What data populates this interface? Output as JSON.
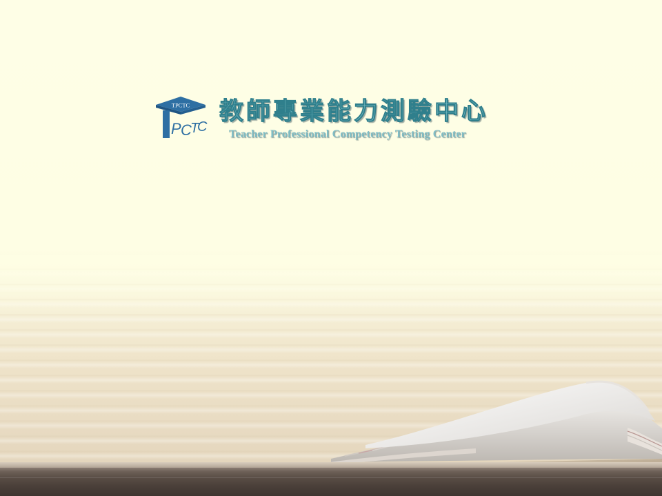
{
  "header": {
    "logo_top_text": "TPCTC",
    "logo_bottom_letters": [
      "T",
      "P",
      "C",
      "T",
      "C"
    ],
    "title_chinese": "教師專業能力測驗中心",
    "title_english": "Teacher Professional Competency Testing Center"
  },
  "colors": {
    "accent": "#2f7f8c",
    "title_fill": "#7cc0c8",
    "background": "#fefee4",
    "shelf": "#4b403a"
  }
}
